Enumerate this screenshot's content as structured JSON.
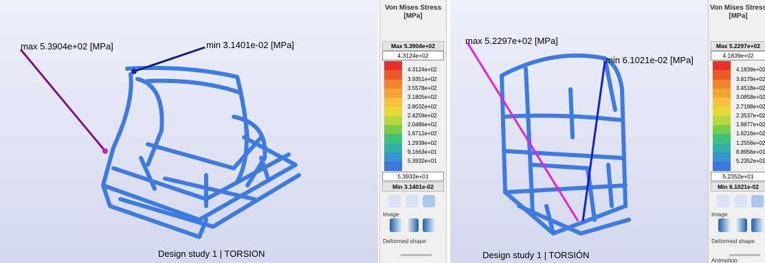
{
  "panels": [
    {
      "max_label": "max 5.3904e+02 [MPa]",
      "min_label": "min 3.1401e-02 [MPa]",
      "caption": "Design study 1 | TORSION",
      "legend": {
        "title": [
          "Von Mises Stress",
          "[MPa]"
        ],
        "max": "Max 5.3904e+02",
        "upper": "4.3124e+02",
        "levels": [
          "4.3124e+02",
          "3.9351e+02",
          "3.5578e+02",
          "3.1805e+02",
          "2.8032e+02",
          "2.4259e+02",
          "2.0486e+02",
          "1.6712e+02",
          "1.2939e+02",
          "9.1663e+01",
          "5.3932e+01"
        ],
        "lower": "5.3932e+01",
        "min": "Min 3.1401e-02",
        "image": "Image",
        "deformed": "Deformed shape"
      }
    },
    {
      "max_label": "max 5.2297e+02 [MPa]",
      "min_label": "min 6.1021e-02 [MPa]",
      "caption": "Design study 1 | TORSIÓN",
      "legend": {
        "title": [
          "Von Mises Stress",
          "[MPa]"
        ],
        "max": "Max 5.2297e+02",
        "upper": "4.1839e+02",
        "levels": [
          "4.1839e+02",
          "3.8179e+02",
          "3.4518e+02",
          "3.0858e+02",
          "2.7198e+02",
          "2.3537e+02",
          "1.9877e+02",
          "1.6216e+02",
          "1.2556e+02",
          "8.8956e+01",
          "5.2352e+01"
        ],
        "lower": "5.2352e+01",
        "min": "Min 6.1021e-02",
        "image": "Image",
        "deformed": "Deformed shape",
        "animation": "Animation"
      }
    }
  ]
}
